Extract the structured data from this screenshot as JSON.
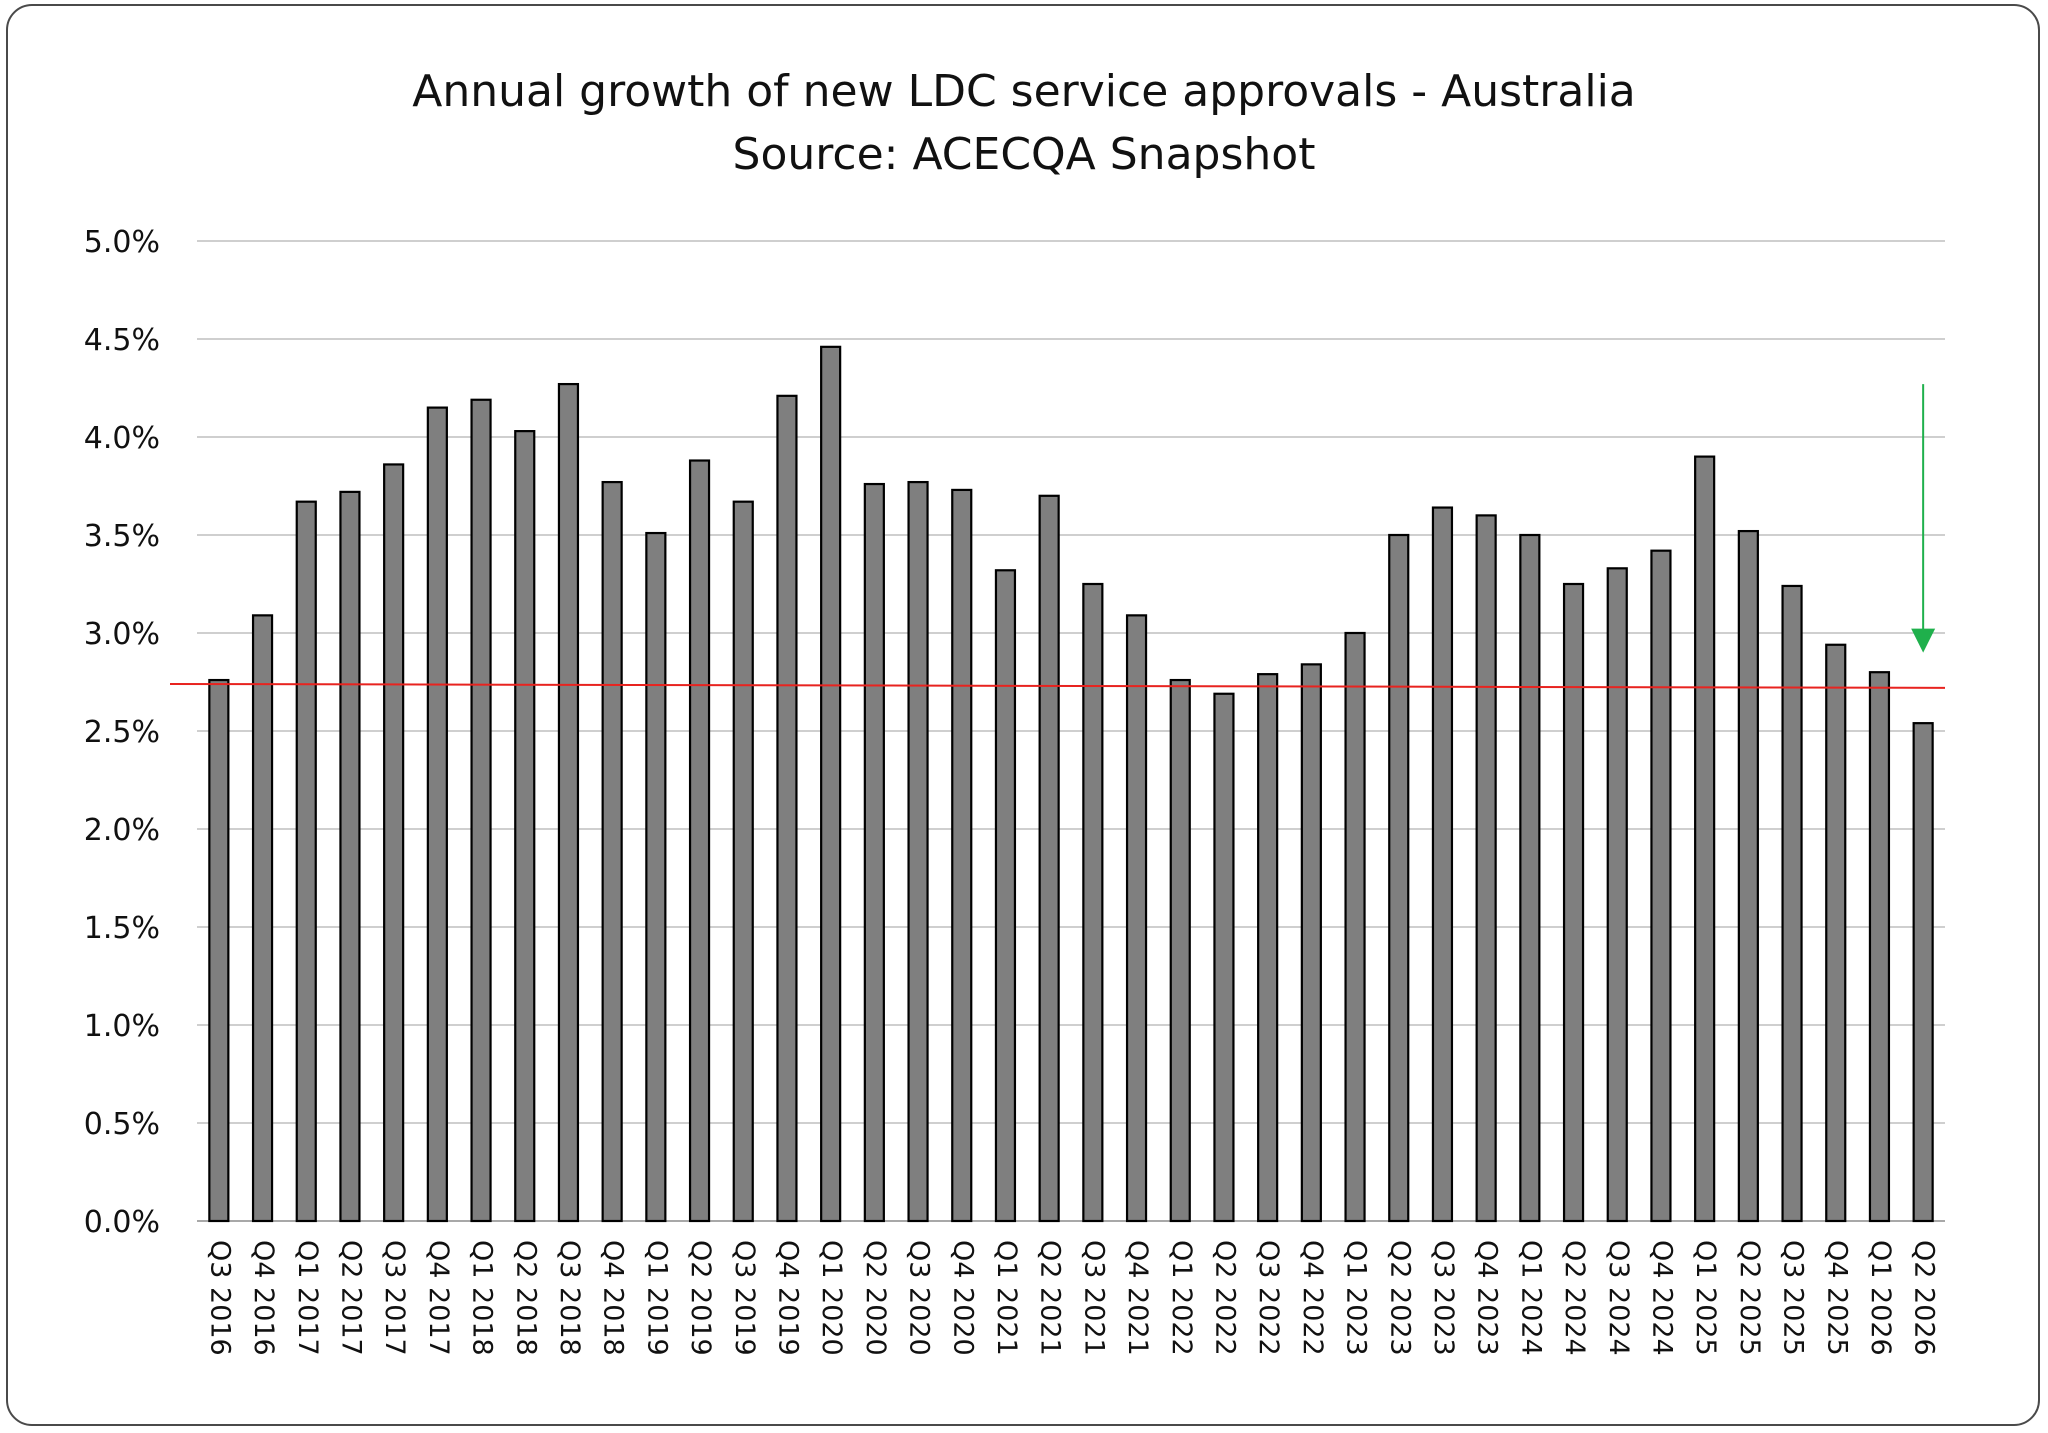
{
  "chart_data": {
    "type": "bar",
    "title": "Annual growth of new LDC service approvals - Australia",
    "subtitle": "Source: ACECQA Snapshot",
    "xlabel": "",
    "ylabel": "",
    "ylim": [
      0,
      5.0
    ],
    "yticks": [
      "0.0%",
      "0.5%",
      "1.0%",
      "1.5%",
      "2.0%",
      "2.5%",
      "3.0%",
      "3.5%",
      "4.0%",
      "4.5%",
      "5.0%"
    ],
    "grid": true,
    "categories": [
      "Q3 2016",
      "Q4 2016",
      "Q1 2017",
      "Q2 2017",
      "Q3 2017",
      "Q4 2017",
      "Q1 2018",
      "Q2 2018",
      "Q3 2018",
      "Q4 2018",
      "Q1 2019",
      "Q2 2019",
      "Q3 2019",
      "Q4 2019",
      "Q1 2020",
      "Q2 2020",
      "Q3 2020",
      "Q4 2020",
      "Q1 2021",
      "Q2 2021",
      "Q3 2021",
      "Q4 2021",
      "Q1 2022",
      "Q2 2022",
      "Q3 2022",
      "Q4 2022",
      "Q1 2023",
      "Q2 2023",
      "Q3 2023",
      "Q4 2023",
      "Q1 2024",
      "Q2 2024",
      "Q3 2024",
      "Q4 2024",
      "Q1 2025",
      "Q2 2025",
      "Q3 2025",
      "Q4 2025",
      "Q1 2026",
      "Q2 2026"
    ],
    "values": [
      2.76,
      3.09,
      3.67,
      3.72,
      3.86,
      4.15,
      4.19,
      4.03,
      4.27,
      3.77,
      3.51,
      3.88,
      3.67,
      4.21,
      4.46,
      3.76,
      3.77,
      3.73,
      3.32,
      3.7,
      3.25,
      3.09,
      2.76,
      2.69,
      2.79,
      2.84,
      3.0,
      3.5,
      3.64,
      3.6,
      3.5,
      3.25,
      3.33,
      3.42,
      3.9,
      3.52,
      3.24,
      2.94,
      2.8,
      2.54
    ],
    "reference_line": {
      "y_start": 2.74,
      "y_end": 2.72
    },
    "annotation_arrow": {
      "category": "Q2 2026",
      "y_from": 4.27,
      "y_to": 2.9
    },
    "colors": {
      "bar_fill": "#7f7f7f",
      "bar_stroke": "#000000",
      "grid": "#bfbfbf",
      "reference_line": "#e8231f",
      "arrow": "#1fb04c"
    }
  }
}
